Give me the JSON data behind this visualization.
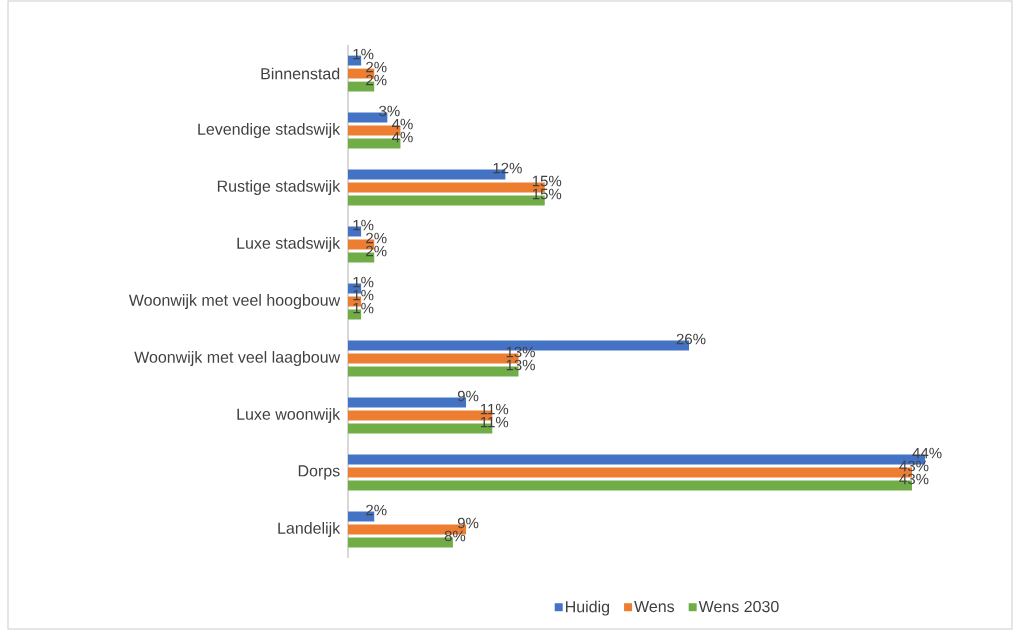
{
  "chart_data": {
    "type": "bar",
    "orientation": "horizontal",
    "categories": [
      "Binnenstad",
      "Levendige stadswijk",
      "Rustige stadswijk",
      "Luxe stadswijk",
      "Woonwijk met veel hoogbouw",
      "Woonwijk met veel laagbouw",
      "Luxe woonwijk",
      "Dorps",
      "Landelijk"
    ],
    "series": [
      {
        "name": "Huidig",
        "color": "#4472c4",
        "values": [
          1,
          3,
          12,
          1,
          1,
          26,
          9,
          44,
          2
        ],
        "value_labels": [
          "1%",
          "3%",
          "12%",
          "1%",
          "1%",
          "26%",
          "9%",
          "44%",
          "2%"
        ]
      },
      {
        "name": "Wens",
        "color": "#ed7d31",
        "values": [
          2,
          4,
          15,
          2,
          1,
          13,
          11,
          43,
          9
        ],
        "value_labels": [
          "2%",
          "4%",
          "15%",
          "2%",
          "1%",
          "13%",
          "11%",
          "43%",
          "9%"
        ]
      },
      {
        "name": "Wens 2030",
        "color": "#70ad47",
        "values": [
          2,
          4,
          15,
          2,
          1,
          13,
          11,
          43,
          8
        ],
        "value_labels": [
          "2%",
          "4%",
          "15%",
          "2%",
          "1%",
          "13%",
          "11%",
          "43%",
          "8%"
        ]
      }
    ],
    "legend": "bottom",
    "tick_labels": "y"
  }
}
